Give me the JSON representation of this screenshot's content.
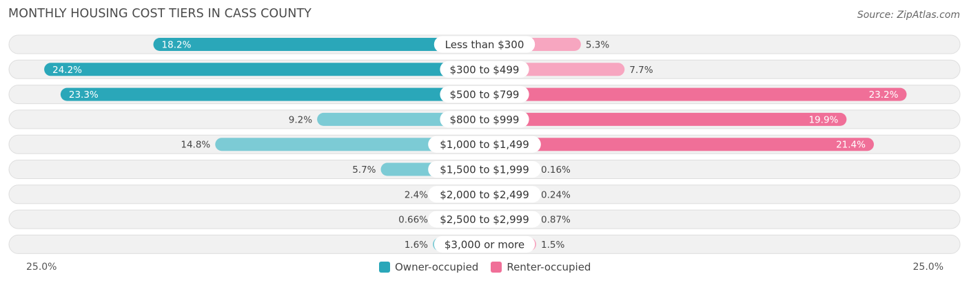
{
  "title": "MONTHLY HOUSING COST TIERS IN CASS COUNTY",
  "source": "Source: ZipAtlas.com",
  "colors": {
    "owner_strong": "#2aa7b9",
    "owner_light": "#7ccbd5",
    "renter_strong": "#f06f98",
    "renter_light": "#f7a6c0",
    "row_bg": "#f1f1f1",
    "row_border": "#dedede"
  },
  "chart_data": {
    "type": "bar",
    "orientation": "horizontal-diverging",
    "title": "MONTHLY HOUSING COST TIERS IN CASS COUNTY",
    "categories": [
      "Less than $300",
      "$300 to $499",
      "$500 to $799",
      "$800 to $999",
      "$1,000 to $1,499",
      "$1,500 to $1,999",
      "$2,000 to $2,499",
      "$2,500 to $2,999",
      "$3,000 or more"
    ],
    "series": [
      {
        "name": "Owner-occupied",
        "values": [
          18.2,
          24.2,
          23.3,
          9.2,
          14.8,
          5.7,
          2.4,
          0.66,
          1.6
        ],
        "labels": [
          "18.2%",
          "24.2%",
          "23.3%",
          "9.2%",
          "14.8%",
          "5.7%",
          "2.4%",
          "0.66%",
          "1.6%"
        ]
      },
      {
        "name": "Renter-occupied",
        "values": [
          5.3,
          7.7,
          23.2,
          19.9,
          21.4,
          0.16,
          0.24,
          0.87,
          1.5
        ],
        "labels": [
          "5.3%",
          "7.7%",
          "23.2%",
          "19.9%",
          "21.4%",
          "0.16%",
          "0.24%",
          "0.87%",
          "1.5%"
        ]
      }
    ],
    "xlim": [
      -25,
      25
    ],
    "axis_labels": {
      "left": "25.0%",
      "right": "25.0%"
    },
    "legend": {
      "position": "bottom-center",
      "items": [
        "Owner-occupied",
        "Renter-occupied"
      ]
    }
  }
}
